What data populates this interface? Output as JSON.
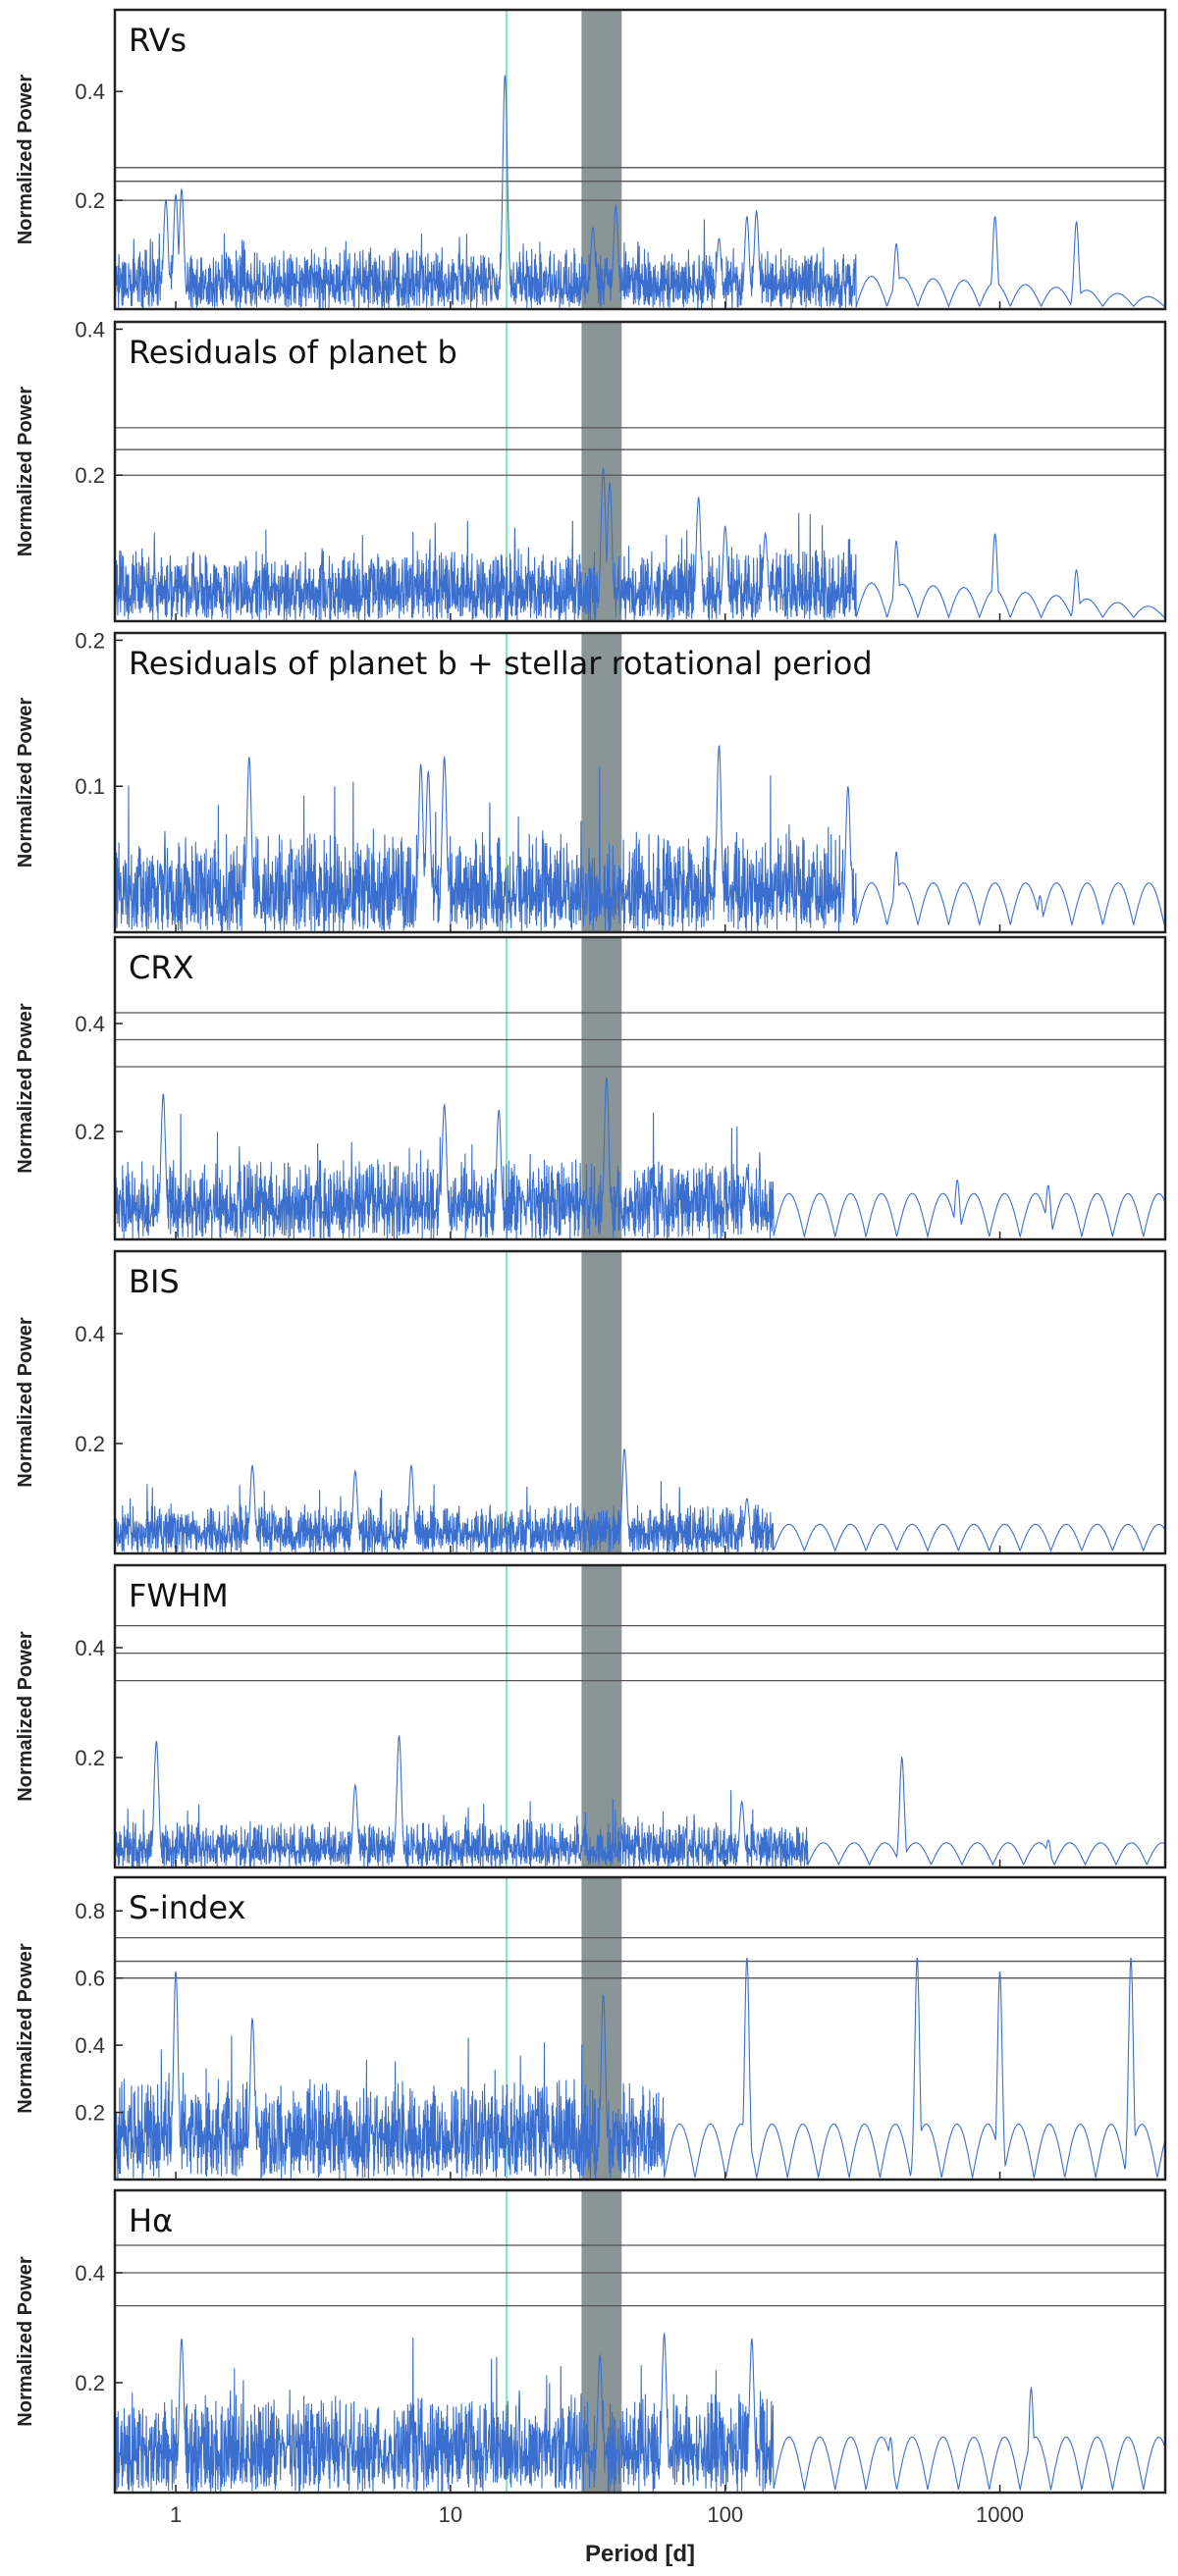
{
  "colors": {
    "series": "#3a6fd0",
    "reference_line": "#5fe0b0",
    "rotation_band": "#8a9596",
    "threshold": "#555555",
    "frame": "#222222"
  },
  "chart_data": [
    {
      "type": "line",
      "title": "RVs",
      "ylabel": "Normalized Power",
      "yticks": [
        0.2,
        0.4
      ],
      "ylim": [
        0,
        0.55
      ],
      "thresholds": [
        0.26,
        0.235,
        0.2
      ],
      "peaks": [
        [
          0.92,
          0.2
        ],
        [
          1.0,
          0.21
        ],
        [
          1.05,
          0.22
        ],
        [
          15.8,
          0.43
        ],
        [
          15.9,
          0.3
        ],
        [
          33,
          0.15
        ],
        [
          40,
          0.19
        ],
        [
          95,
          0.13
        ],
        [
          120,
          0.17
        ],
        [
          130,
          0.18
        ],
        [
          420,
          0.12
        ],
        [
          960,
          0.17
        ],
        [
          1900,
          0.16
        ]
      ],
      "smooth_start": 300,
      "smooth_decay": 2800,
      "hf_base": 0.035,
      "hf_rand": 0.08
    },
    {
      "type": "line",
      "title": "Residuals of planet b",
      "ylabel": "Normalized Power",
      "yticks": [
        0.2,
        0.4
      ],
      "ylim": [
        0,
        0.41
      ],
      "thresholds": [
        0.265,
        0.235,
        0.2
      ],
      "peaks": [
        [
          36,
          0.21
        ],
        [
          38,
          0.19
        ],
        [
          80,
          0.17
        ],
        [
          100,
          0.13
        ],
        [
          140,
          0.12
        ],
        [
          420,
          0.11
        ],
        [
          960,
          0.12
        ],
        [
          1900,
          0.07
        ]
      ],
      "smooth_start": 300,
      "smooth_decay": 2800,
      "hf_base": 0.03,
      "hf_rand": 0.07
    },
    {
      "type": "line",
      "title": "Residuals of planet b + stellar rotational period",
      "ylabel": "Normalized Power",
      "yticks": [
        0.1,
        0.2
      ],
      "ylim": [
        0,
        0.205
      ],
      "thresholds": [],
      "peaks": [
        [
          1.85,
          0.12
        ],
        [
          7.8,
          0.115
        ],
        [
          8.3,
          0.11
        ],
        [
          9.5,
          0.12
        ],
        [
          95,
          0.128
        ],
        [
          280,
          0.1
        ],
        [
          420,
          0.055
        ],
        [
          1400,
          0.025
        ]
      ],
      "smooth_start": 300,
      "smooth_decay": 999999,
      "hf_base": 0.018,
      "hf_rand": 0.05
    },
    {
      "type": "line",
      "title": "CRX",
      "ylabel": "Normalized Power",
      "yticks": [
        0.2,
        0.4
      ],
      "ylim": [
        0,
        0.56
      ],
      "thresholds": [
        0.42,
        0.37,
        0.32
      ],
      "peaks": [
        [
          0.9,
          0.27
        ],
        [
          9.5,
          0.25
        ],
        [
          15,
          0.24
        ],
        [
          37,
          0.3
        ],
        [
          120,
          0.12
        ],
        [
          700,
          0.11
        ],
        [
          1500,
          0.1
        ]
      ],
      "smooth_start": 150,
      "smooth_decay": 999999,
      "hf_base": 0.05,
      "hf_rand": 0.1
    },
    {
      "type": "line",
      "title": "BIS",
      "ylabel": "Normalized Power",
      "yticks": [
        0.2,
        0.4
      ],
      "ylim": [
        0,
        0.55
      ],
      "thresholds": [],
      "peaks": [
        [
          1.9,
          0.16
        ],
        [
          4.5,
          0.15
        ],
        [
          7.2,
          0.16
        ],
        [
          43,
          0.19
        ],
        [
          120,
          0.1
        ]
      ],
      "smooth_start": 150,
      "smooth_decay": 999999,
      "hf_base": 0.03,
      "hf_rand": 0.06
    },
    {
      "type": "line",
      "title": "FWHM",
      "ylabel": "Normalized Power",
      "yticks": [
        0.2,
        0.4
      ],
      "ylim": [
        0,
        0.55
      ],
      "thresholds": [
        0.44,
        0.39,
        0.34
      ],
      "peaks": [
        [
          0.85,
          0.23
        ],
        [
          4.5,
          0.15
        ],
        [
          6.5,
          0.24
        ],
        [
          115,
          0.12
        ],
        [
          440,
          0.2
        ],
        [
          1500,
          0.05
        ]
      ],
      "smooth_start": 200,
      "smooth_decay": 999999,
      "hf_base": 0.025,
      "hf_rand": 0.06
    },
    {
      "type": "line",
      "title": "S-index",
      "ylabel": "Normalized Power",
      "yticks": [
        0.2,
        0.4,
        0.6,
        0.8
      ],
      "ylim": [
        0,
        0.9
      ],
      "thresholds": [
        0.72,
        0.65,
        0.6
      ],
      "peaks": [
        [
          1.0,
          0.62
        ],
        [
          1.9,
          0.48
        ],
        [
          36,
          0.55
        ],
        [
          120,
          0.66
        ],
        [
          500,
          0.66
        ],
        [
          1000,
          0.62
        ],
        [
          3000,
          0.66
        ]
      ],
      "smooth_start": 60,
      "smooth_decay": 999999,
      "hf_base": 0.1,
      "hf_rand": 0.2
    },
    {
      "type": "line",
      "title": "Hα",
      "ylabel": "Normalized Power",
      "yticks": [
        0.2,
        0.4
      ],
      "ylim": [
        0,
        0.55
      ],
      "thresholds": [
        0.45,
        0.4,
        0.34
      ],
      "peaks": [
        [
          1.05,
          0.28
        ],
        [
          35,
          0.25
        ],
        [
          60,
          0.29
        ],
        [
          125,
          0.28
        ],
        [
          400,
          0.1
        ],
        [
          1300,
          0.19
        ]
      ],
      "smooth_start": 150,
      "smooth_decay": 999999,
      "hf_base": 0.06,
      "hf_rand": 0.12
    }
  ],
  "x_axis": {
    "label": "Period [d]",
    "scale": "log",
    "range": [
      0.6,
      4000
    ],
    "ticks": [
      "1",
      "10",
      "100",
      "1000"
    ],
    "tick_values": [
      1,
      10,
      100,
      1000
    ]
  },
  "annotations": {
    "reference_period": 16,
    "rotation_band": [
      30,
      42
    ]
  }
}
